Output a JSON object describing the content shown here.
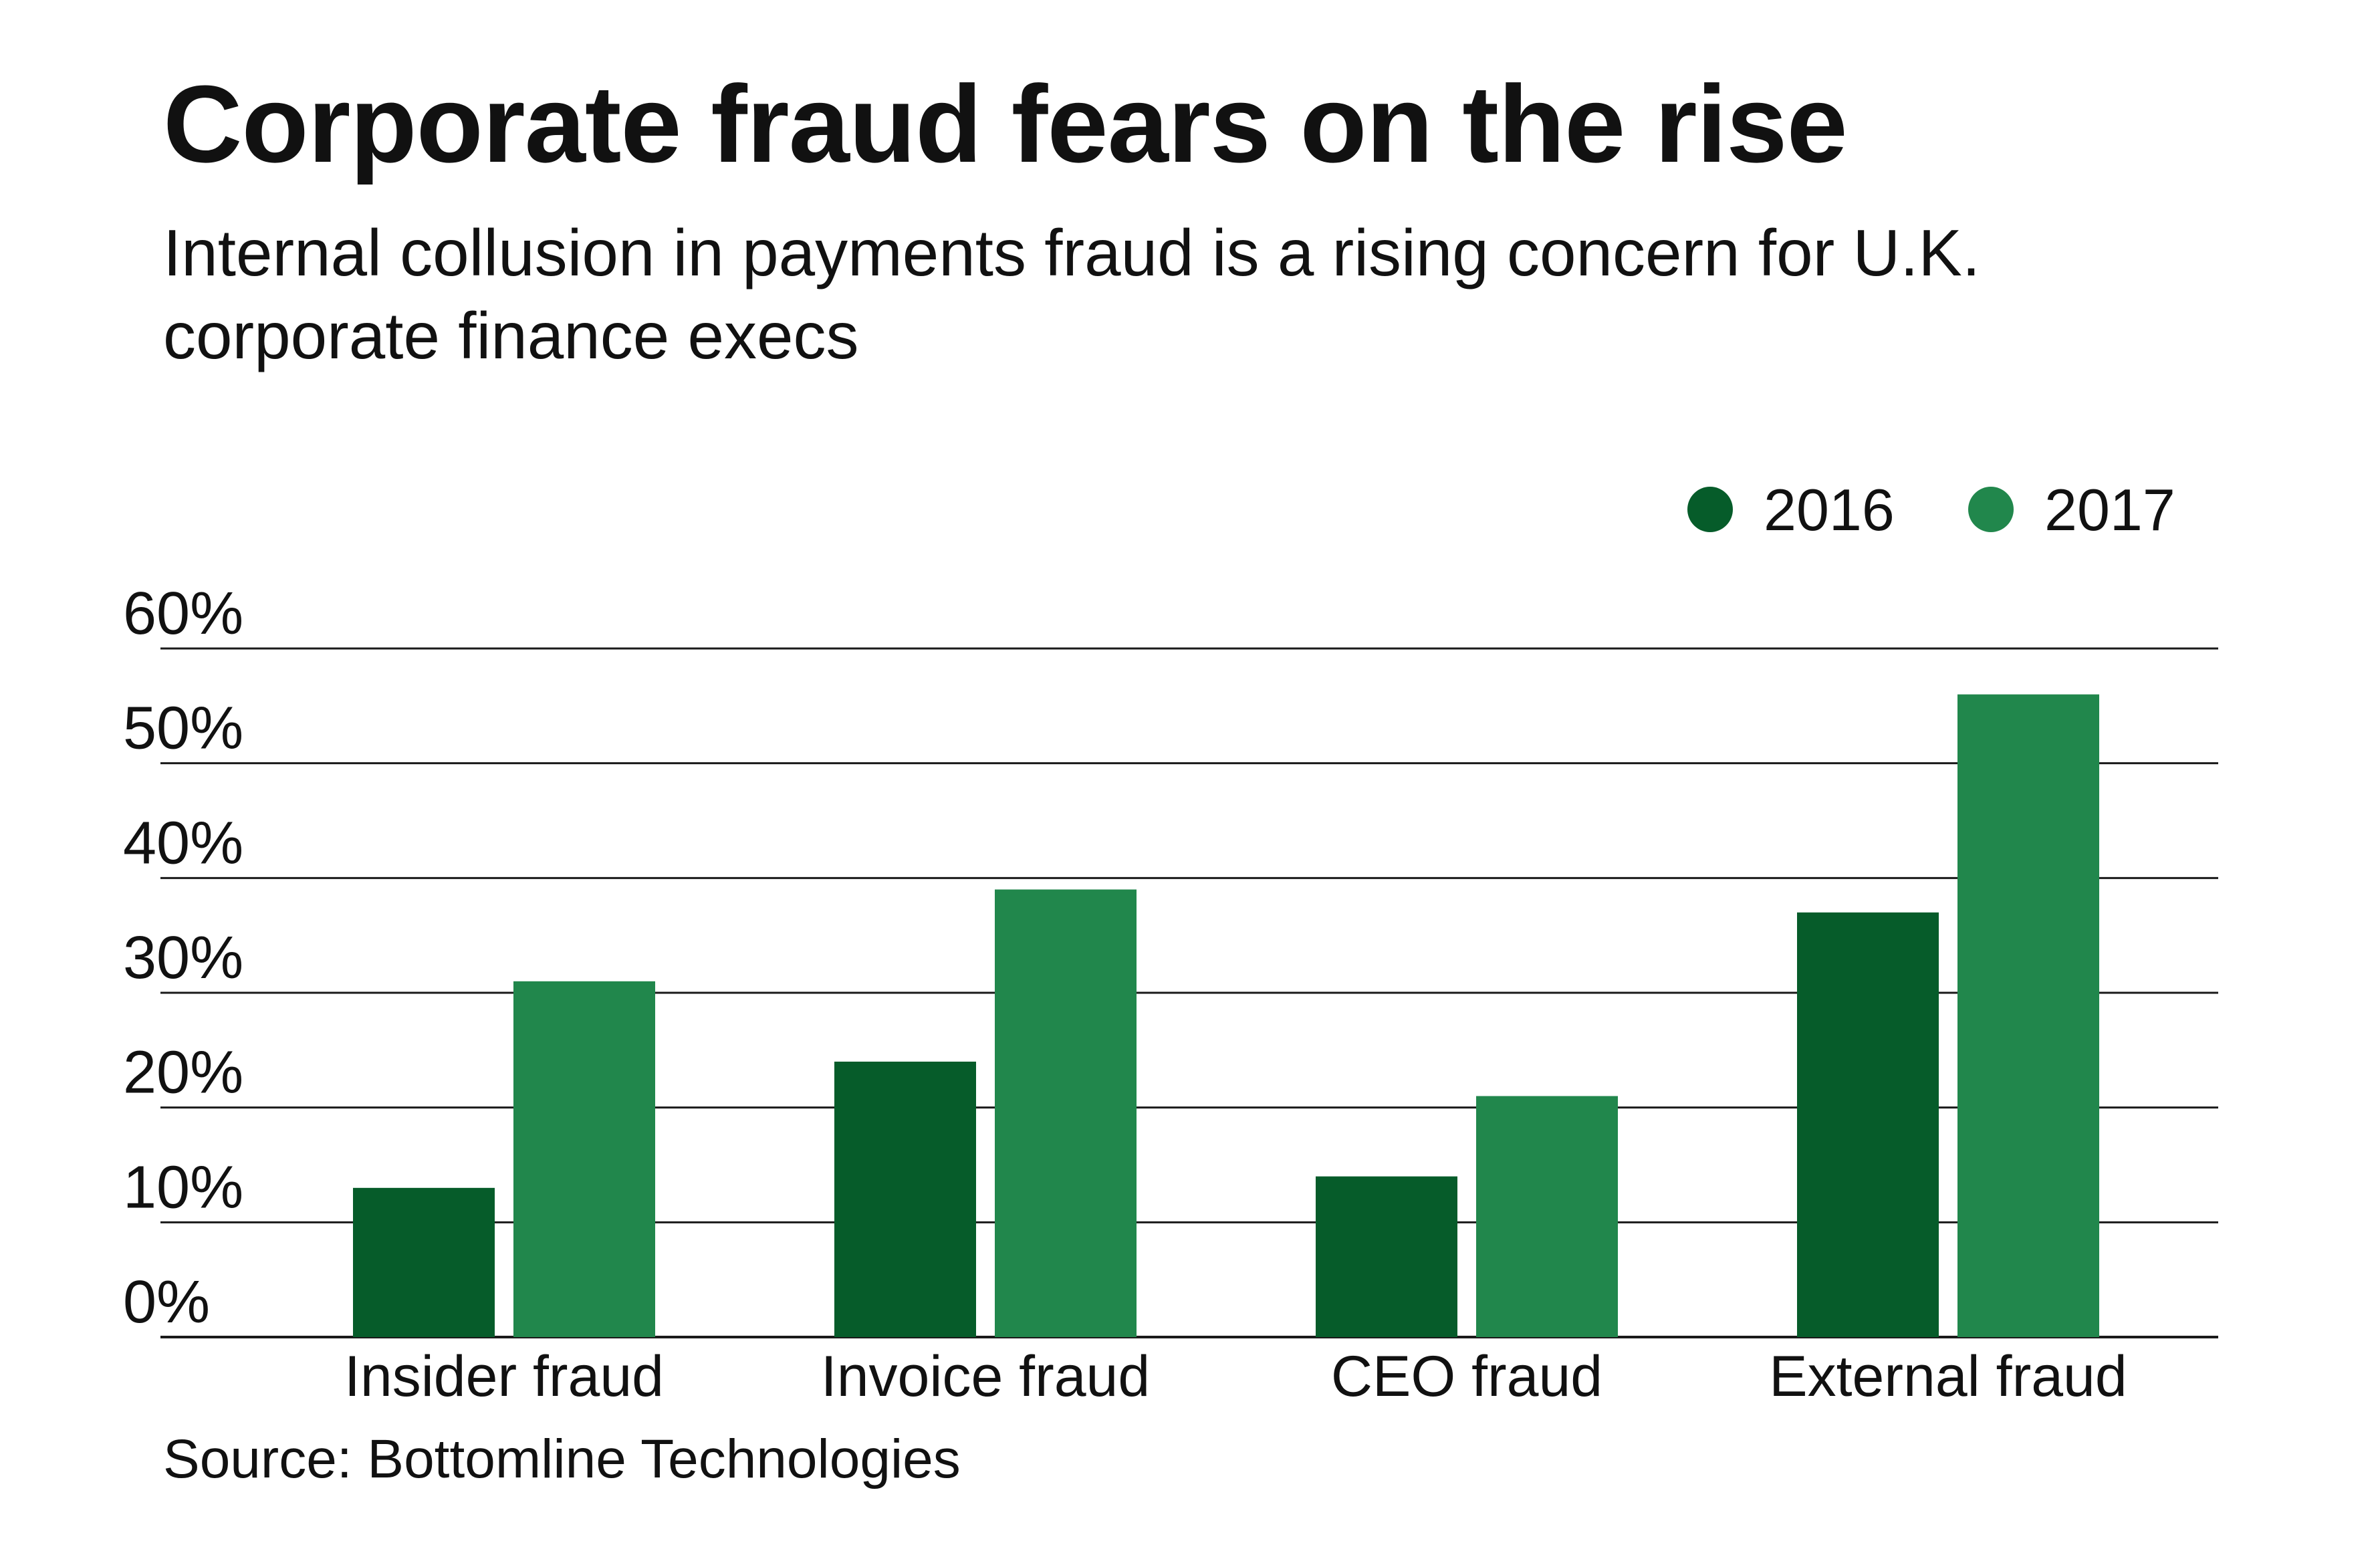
{
  "title": "Corporate fraud fears on the rise",
  "subtitle": "Internal collusion in payments fraud is a rising concern for U.K. corporate finance execs",
  "source": "Source: Bottomline Technologies",
  "colors": {
    "series_2016": "#065c2a",
    "series_2017": "#21874c",
    "gridline": "#1a1a1a",
    "text": "#111111"
  },
  "chart_data": {
    "type": "bar",
    "categories": [
      "Insider fraud",
      "Invoice fraud",
      "CEO fraud",
      "External fraud"
    ],
    "series": [
      {
        "name": "2016",
        "values": [
          13,
          24,
          14,
          37
        ]
      },
      {
        "name": "2017",
        "values": [
          31,
          39,
          21,
          56
        ]
      }
    ],
    "ylim": [
      0,
      60
    ],
    "yticks": [
      0,
      10,
      20,
      30,
      40,
      50,
      60
    ],
    "ytick_labels": [
      "0%",
      "10%",
      "20%",
      "30%",
      "40%",
      "50%",
      "60%"
    ],
    "grid": true,
    "legend": "top-right",
    "xlabel": "",
    "ylabel": ""
  }
}
